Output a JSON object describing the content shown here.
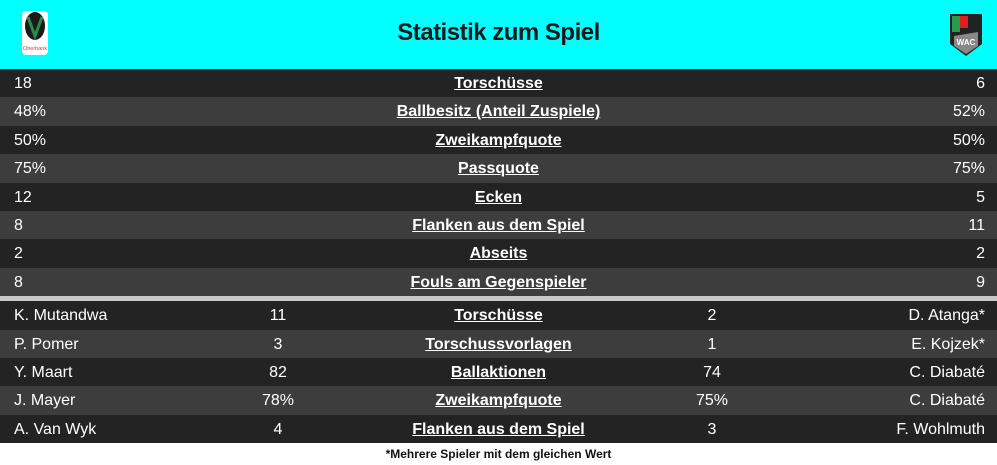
{
  "header": {
    "title": "Statistik zum Spiel",
    "home_logo": "SV Ried logo",
    "home_logo_text": "Oberbank",
    "away_logo": "WAC crest",
    "away_logo_text": "WAC"
  },
  "colors": {
    "header_bg": "#00ffff",
    "row_dark": "#232323",
    "row_light": "#3d3d3d",
    "separator": "#c8c8c8"
  },
  "team_stats": [
    {
      "home": "18",
      "label": "Torschüsse",
      "away": "6"
    },
    {
      "home": "48%",
      "label": "Ballbesitz (Anteil Zuspiele)",
      "away": "52%"
    },
    {
      "home": "50%",
      "label": "Zweikampfquote",
      "away": "50%"
    },
    {
      "home": "75%",
      "label": "Passquote",
      "away": "75%"
    },
    {
      "home": "12",
      "label": "Ecken",
      "away": "5"
    },
    {
      "home": "8",
      "label": "Flanken aus dem Spiel",
      "away": "11"
    },
    {
      "home": "2",
      "label": "Abseits",
      "away": "2"
    },
    {
      "home": "8",
      "label": "Fouls am Gegenspieler",
      "away": "9"
    }
  ],
  "player_stats": [
    {
      "home_player": "K. Mutandwa",
      "home_value": "11",
      "label": "Torschüsse",
      "away_value": "2",
      "away_player": "D. Atanga*"
    },
    {
      "home_player": "P. Pomer",
      "home_value": "3",
      "label": "Torschussvorlagen",
      "away_value": "1",
      "away_player": "E. Kojzek*"
    },
    {
      "home_player": "Y. Maart",
      "home_value": "82",
      "label": "Ballaktionen",
      "away_value": "74",
      "away_player": "C. Diabaté"
    },
    {
      "home_player": "J. Mayer",
      "home_value": "78%",
      "label": "Zweikampfquote",
      "away_value": "75%",
      "away_player": "C. Diabaté"
    },
    {
      "home_player": "A. Van Wyk",
      "home_value": "4",
      "label": "Flanken aus dem Spiel",
      "away_value": "3",
      "away_player": "F. Wohlmuth"
    }
  ],
  "footnote": "*Mehrere Spieler mit dem gleichen Wert"
}
